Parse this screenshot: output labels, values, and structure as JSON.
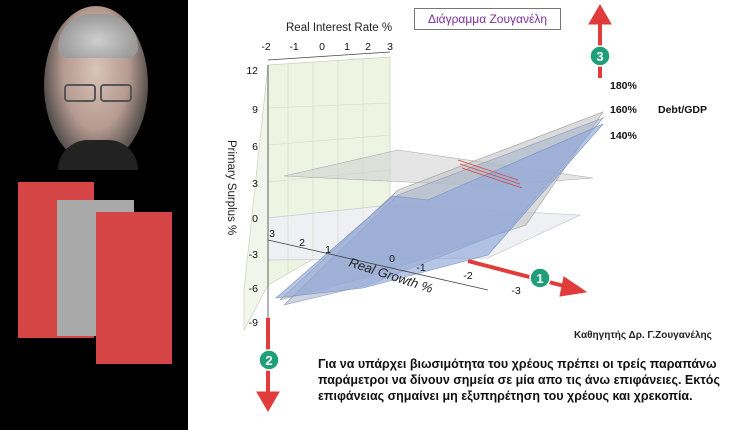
{
  "title": "Διάγραμμα Ζουγανέλη",
  "credit": "Καθηγητής Δρ. Γ.Ζουγανέλης",
  "caption": "Για να υπάρχει βιωσιμότητα του χρέους πρέπει οι τρείς παραπάνω παράμετροι να δίνουν σημεία σε μία απο τις άνω επιφάνειες. Εκτός επιφάνειας σημαίνει μη εξυπηρέτηση του χρέους και χρεκοπία.",
  "markers": [
    "1",
    "2",
    "3"
  ],
  "chart_data": {
    "type": "surface3d",
    "axes": {
      "real_interest_rate": {
        "label": "Real Interest Rate %",
        "ticks": [
          "-2",
          "-1",
          "0",
          "1",
          "2",
          "3"
        ]
      },
      "primary_surplus": {
        "label": "Primary Surplus %",
        "ticks": [
          "12",
          "9",
          "6",
          "3",
          "0",
          "-3",
          "-6",
          "-9"
        ]
      },
      "real_growth": {
        "label": "Real Growth %",
        "ticks": [
          "3",
          "2",
          "1",
          "0",
          "-1",
          "-2",
          "-3"
        ]
      }
    },
    "series_label": "Debt/GDP",
    "series": [
      {
        "name": "180%",
        "color": "#b8b8b8"
      },
      {
        "name": "160%",
        "color": "#a8b4cc"
      },
      {
        "name": "140%",
        "color": "#8fa8da"
      }
    ]
  },
  "colors": {
    "arrow": "#e03c3c",
    "marker": "#1f9e7a",
    "title": "#7b2e9e",
    "panel_red": "#d64545",
    "panel_gray": "#a9a9a9"
  }
}
